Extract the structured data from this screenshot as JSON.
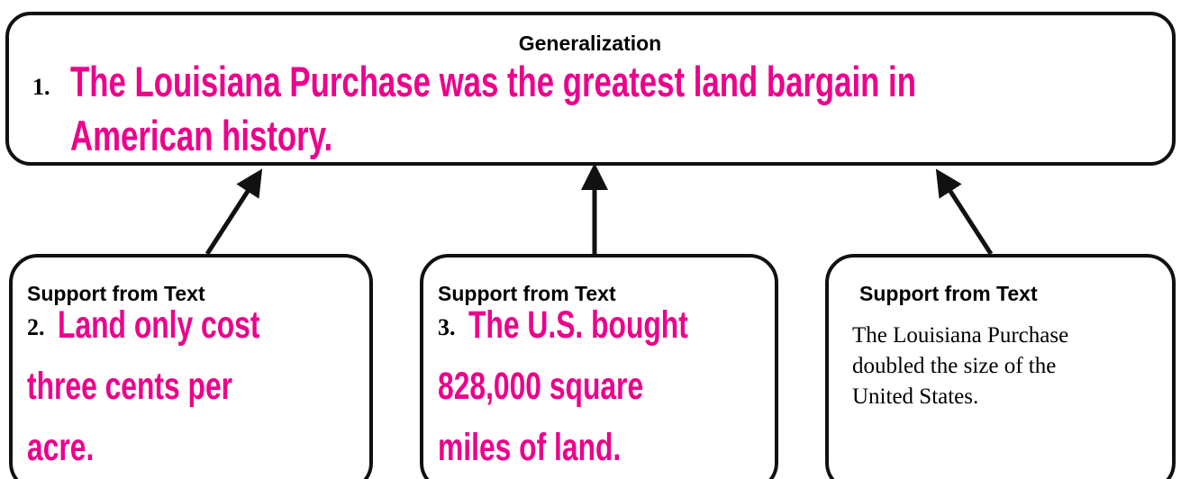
{
  "generalization": {
    "label": "Generalization",
    "number": "1.",
    "lines": [
      "The Louisiana Purchase was the greatest land bargain in",
      "American history."
    ]
  },
  "supports": [
    {
      "label": "Support from Text",
      "number": "2.",
      "lines": [
        "Land only cost",
        "three cents per",
        "acre."
      ]
    },
    {
      "label": "Support from Text",
      "number": "3.",
      "lines": [
        "The U.S. bought",
        "828,000 square",
        "miles of land."
      ]
    },
    {
      "label": "Support from Text",
      "body": [
        "The Louisiana Purchase",
        "doubled the size of the",
        "United States."
      ]
    }
  ]
}
